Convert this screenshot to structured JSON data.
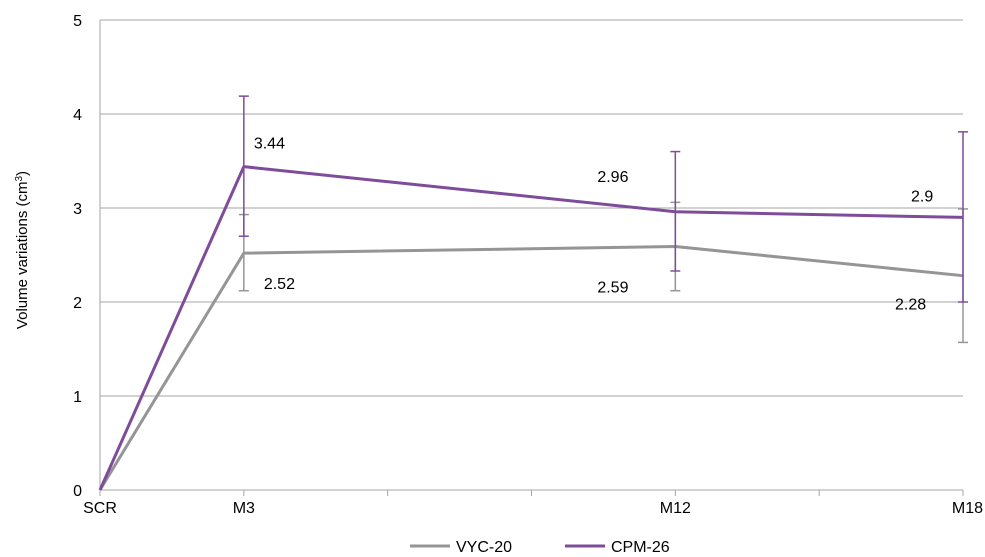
{
  "chart_data": {
    "type": "line",
    "xlabel": "",
    "ylabel": "Volume variations (cm",
    "ylabel_sup": "3",
    "ylabel_close": ")",
    "ylim": [
      0,
      5
    ],
    "yticks": [
      "0",
      "1",
      "2",
      "3",
      "4",
      "5"
    ],
    "x_positions": [
      0,
      3,
      12,
      18
    ],
    "categories": [
      "SCR",
      "M3",
      "M12",
      "M18"
    ],
    "minor_ticks": [
      6,
      9,
      15
    ],
    "grid": true,
    "legend_position": "bottom",
    "series": [
      {
        "name": "VYC-20",
        "color": "#959595",
        "values": [
          0,
          2.52,
          2.59,
          2.28
        ],
        "labels": [
          "",
          "2.52",
          "2.59",
          "2.28"
        ],
        "error_low": [
          null,
          2.12,
          2.12,
          1.57
        ],
        "error_high": [
          null,
          2.93,
          3.06,
          2.99
        ]
      },
      {
        "name": "CPM-26",
        "color": "#7e4c9a",
        "values": [
          0,
          3.44,
          2.96,
          2.9
        ],
        "labels": [
          "",
          "3.44",
          "2.96",
          "2.9"
        ],
        "error_low": [
          null,
          2.7,
          2.33,
          2.0
        ],
        "error_high": [
          null,
          4.19,
          3.6,
          3.81
        ]
      }
    ]
  }
}
